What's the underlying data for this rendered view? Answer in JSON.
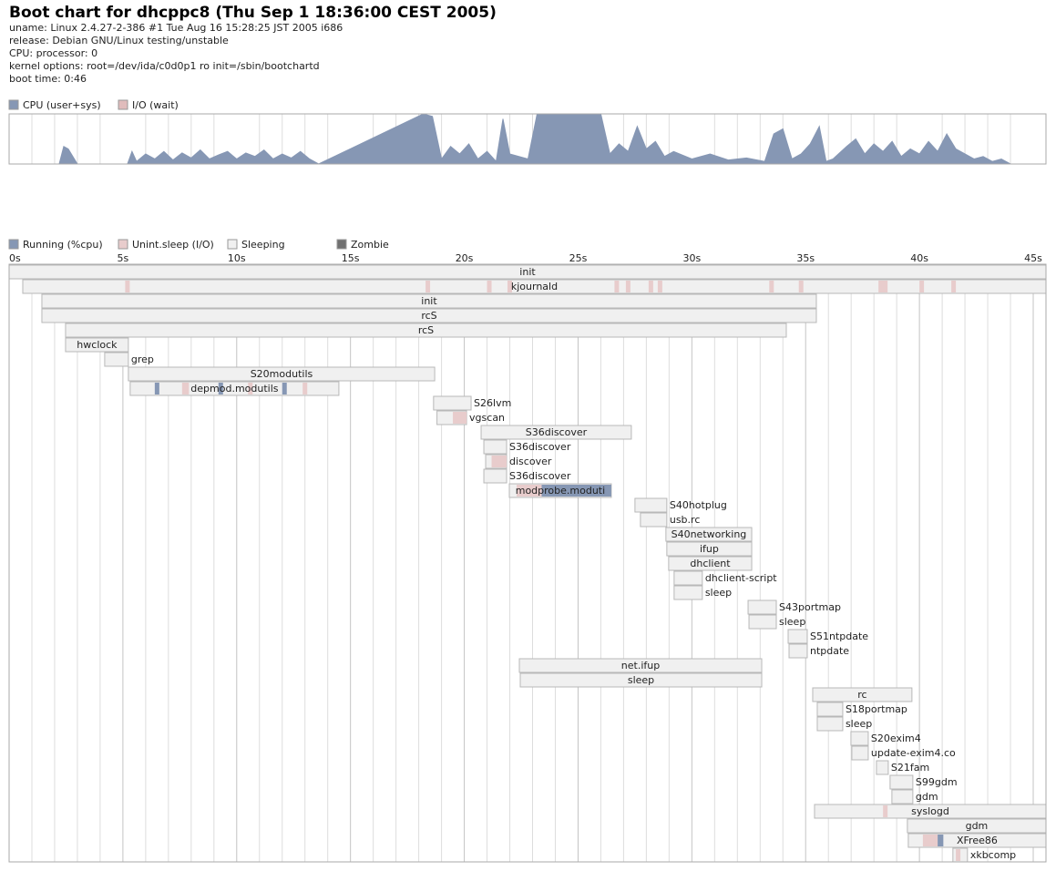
{
  "header": {
    "title": "Boot chart for dhcppc8 (Thu Sep  1 18:36:00 CEST 2005)",
    "lines": [
      "uname: Linux 2.4.27-2-386 #1 Tue Aug 16 15:28:25 JST 2005 i686",
      "release: Debian GNU/Linux testing/unstable",
      "CPU: processor: 0",
      "kernel options: root=/dev/ida/c0d0p1 ro init=/sbin/bootchartd",
      "boot time: 0:46"
    ]
  },
  "chart_data": [
    {
      "type": "area",
      "xlim": [
        0,
        45.56
      ],
      "ylim": [
        0,
        100
      ],
      "x": [
        0,
        2.2,
        2.4,
        2.6,
        3.0,
        5.2,
        5.4,
        5.6,
        6.0,
        6.4,
        6.8,
        7.2,
        7.6,
        8.0,
        8.4,
        8.8,
        9.2,
        9.6,
        10.0,
        10.4,
        10.8,
        11.2,
        11.6,
        12.0,
        12.4,
        12.8,
        13.2,
        13.6,
        18.2,
        18.6,
        19.0,
        19.4,
        19.8,
        20.2,
        20.6,
        21.0,
        21.4,
        21.7,
        22.0,
        22.4,
        22.8,
        23.2,
        23.6,
        26.0,
        26.4,
        26.8,
        27.2,
        27.6,
        28.0,
        28.4,
        28.8,
        29.2,
        30.0,
        30.8,
        31.6,
        32.4,
        33.2,
        33.6,
        34.0,
        34.4,
        34.8,
        35.2,
        35.6,
        35.9,
        36.2,
        36.8,
        37.2,
        37.6,
        38.0,
        38.4,
        38.8,
        39.2,
        39.6,
        40.0,
        40.4,
        40.8,
        41.2,
        41.6,
        42.0,
        42.4,
        42.8,
        43.2,
        43.6,
        44.0,
        45.5
      ],
      "series": [
        {
          "name": "CPU (user+sys)",
          "color": "#8697b4",
          "values": [
            0,
            0,
            35,
            30,
            0,
            0,
            25,
            5,
            20,
            10,
            25,
            8,
            22,
            12,
            28,
            10,
            18,
            25,
            10,
            22,
            15,
            28,
            10,
            20,
            12,
            25,
            10,
            0,
            100,
            95,
            10,
            35,
            20,
            40,
            10,
            25,
            5,
            90,
            20,
            15,
            10,
            100,
            100,
            100,
            20,
            40,
            25,
            75,
            30,
            45,
            15,
            25,
            10,
            20,
            8,
            12,
            5,
            60,
            70,
            10,
            20,
            40,
            75,
            5,
            10,
            35,
            50,
            20,
            40,
            25,
            45,
            15,
            30,
            20,
            45,
            25,
            60,
            30,
            20,
            10,
            15,
            5,
            10,
            0,
            0
          ]
        },
        {
          "name": "I/O (wait)",
          "color": "#e0bcbc",
          "values": [
            0,
            0,
            0,
            0,
            0,
            0,
            0,
            0,
            0,
            0,
            0,
            0,
            0,
            0,
            0,
            0,
            0,
            0,
            0,
            0,
            0,
            0,
            0,
            0,
            0,
            0,
            0,
            0,
            0,
            0,
            0,
            0,
            0,
            0,
            0,
            0,
            0,
            0,
            0,
            0,
            0,
            0,
            0,
            0,
            0,
            0,
            0,
            0,
            0,
            0,
            0,
            0,
            0,
            0,
            0,
            0,
            0,
            0,
            0,
            0,
            0,
            0,
            0,
            0,
            0,
            0,
            0,
            0,
            0,
            0,
            0,
            0,
            0,
            0,
            0,
            0,
            0,
            0,
            0,
            0,
            0,
            0,
            0,
            0,
            0
          ]
        }
      ],
      "minor_xticks": [
        1,
        2,
        3,
        4,
        6,
        7,
        8,
        9,
        11,
        12,
        13,
        14,
        16,
        17,
        18,
        19,
        21,
        22,
        23,
        24,
        26,
        27,
        28,
        29,
        31,
        32,
        33,
        34,
        36,
        37,
        38,
        39,
        41,
        42,
        43,
        44
      ]
    },
    {
      "type": "gantt",
      "xlim": [
        0,
        45.56
      ],
      "legend": [
        {
          "name": "Running (%cpu)",
          "color": "#8697b4"
        },
        {
          "name": "Unint.sleep (I/O)",
          "color": "#e8cccc"
        },
        {
          "name": "Sleeping",
          "color": "#f0f0f0"
        },
        {
          "name": "Zombie",
          "color": "#707070"
        }
      ],
      "xticks": [
        {
          "value": 0,
          "label": "0s"
        },
        {
          "value": 5,
          "label": "5s"
        },
        {
          "value": 10,
          "label": "10s"
        },
        {
          "value": 15,
          "label": "15s"
        },
        {
          "value": 20,
          "label": "20s"
        },
        {
          "value": 25,
          "label": "25s"
        },
        {
          "value": 30,
          "label": "30s"
        },
        {
          "value": 35,
          "label": "35s"
        },
        {
          "value": 40,
          "label": "40s"
        },
        {
          "value": 45,
          "label": "45s"
        }
      ],
      "minor_xticks": [
        1,
        2,
        3,
        4,
        6,
        7,
        8,
        9,
        11,
        12,
        13,
        14,
        16,
        17,
        18,
        19,
        21,
        22,
        23,
        24,
        26,
        27,
        28,
        29,
        31,
        32,
        33,
        34,
        36,
        37,
        38,
        39,
        41,
        42,
        43,
        44
      ],
      "processes": [
        {
          "name": "init",
          "start": 0,
          "end": 45.56
        },
        {
          "name": "kjournald",
          "start": 0.6,
          "end": 45.56,
          "io": [
            [
              5.1,
              5.3
            ],
            [
              18.3,
              18.5
            ],
            [
              21.0,
              21.2
            ],
            [
              21.9,
              22.1
            ],
            [
              26.6,
              26.8
            ],
            [
              27.1,
              27.3
            ],
            [
              28.1,
              28.3
            ],
            [
              28.5,
              28.7
            ],
            [
              33.4,
              33.6
            ],
            [
              34.7,
              34.9
            ],
            [
              38.2,
              38.6
            ],
            [
              40.0,
              40.2
            ],
            [
              41.4,
              41.6
            ]
          ]
        },
        {
          "name": "init",
          "start": 1.44,
          "end": 35.47
        },
        {
          "name": "rcS",
          "start": 1.44,
          "end": 35.47
        },
        {
          "name": "rcS",
          "start": 2.48,
          "end": 34.15
        },
        {
          "name": "hwclock",
          "start": 2.48,
          "end": 5.24
        },
        {
          "name": "grep",
          "start": 4.2,
          "end": 5.24
        },
        {
          "name": "S20modutils",
          "start": 5.24,
          "end": 18.7
        },
        {
          "name": "depmod.modutils",
          "start": 5.32,
          "end": 14.49,
          "io": [
            [
              7.6,
              7.9
            ],
            [
              10.5,
              10.7
            ],
            [
              12.9,
              13.1
            ]
          ],
          "cpu": [
            [
              6.4,
              6.6
            ],
            [
              9.2,
              9.4
            ],
            [
              12.0,
              12.2
            ]
          ]
        },
        {
          "name": "S26lvm",
          "start": 18.65,
          "end": 20.3
        },
        {
          "name": "vgscan",
          "start": 18.8,
          "end": 20.1,
          "io": [
            [
              19.5,
              20.1
            ]
          ]
        },
        {
          "name": "S36discover",
          "start": 20.74,
          "end": 27.34
        },
        {
          "name": "S36discover",
          "start": 20.86,
          "end": 21.86
        },
        {
          "name": "discover",
          "start": 20.94,
          "end": 21.86,
          "io": [
            [
              21.2,
              21.86
            ]
          ]
        },
        {
          "name": "S36discover",
          "start": 20.86,
          "end": 21.86
        },
        {
          "name": "modprobe.moduti",
          "start": 21.98,
          "end": 26.46,
          "io": [
            [
              22.3,
              23.4
            ]
          ],
          "cpu": [
            [
              23.4,
              26.46
            ]
          ]
        },
        {
          "name": "S40hotplug",
          "start": 27.5,
          "end": 28.9
        },
        {
          "name": "usb.rc",
          "start": 27.74,
          "end": 28.9
        },
        {
          "name": "S40networking",
          "start": 28.86,
          "end": 32.63
        },
        {
          "name": "ifup",
          "start": 28.9,
          "end": 32.63
        },
        {
          "name": "dhclient",
          "start": 28.98,
          "end": 32.63
        },
        {
          "name": "dhclient-script",
          "start": 29.22,
          "end": 30.46
        },
        {
          "name": "sleep",
          "start": 29.22,
          "end": 30.46
        },
        {
          "name": "S43portmap",
          "start": 32.47,
          "end": 33.71
        },
        {
          "name": "sleep",
          "start": 32.51,
          "end": 33.71
        },
        {
          "name": "S51ntpdate",
          "start": 34.23,
          "end": 35.07
        },
        {
          "name": "ntpdate",
          "start": 34.27,
          "end": 35.07
        },
        {
          "name": "net.ifup",
          "start": 22.42,
          "end": 33.07
        },
        {
          "name": "sleep",
          "start": 22.46,
          "end": 33.07
        },
        {
          "name": "rc",
          "start": 35.31,
          "end": 39.67
        },
        {
          "name": "S18portmap",
          "start": 35.51,
          "end": 36.63
        },
        {
          "name": "sleep",
          "start": 35.51,
          "end": 36.63
        },
        {
          "name": "S20exim4",
          "start": 36.99,
          "end": 37.75
        },
        {
          "name": "update-exim4.co",
          "start": 37.03,
          "end": 37.75
        },
        {
          "name": "S21fam",
          "start": 38.11,
          "end": 38.63
        },
        {
          "name": "S99gdm",
          "start": 38.71,
          "end": 39.71
        },
        {
          "name": "gdm",
          "start": 38.79,
          "end": 39.71
        },
        {
          "name": "syslogd",
          "start": 35.39,
          "end": 45.56,
          "io": [
            [
              38.4,
              38.6
            ]
          ]
        },
        {
          "name": "gdm",
          "start": 39.47,
          "end": 45.56
        },
        {
          "name": "XFree86",
          "start": 39.51,
          "end": 45.56,
          "io": [
            [
              40.15,
              40.8
            ]
          ],
          "cpu": [
            [
              40.8,
              41.05
            ]
          ]
        },
        {
          "name": "xkbcomp",
          "start": 41.47,
          "end": 42.11,
          "io": [
            [
              41.6,
              41.8
            ]
          ]
        }
      ]
    }
  ]
}
